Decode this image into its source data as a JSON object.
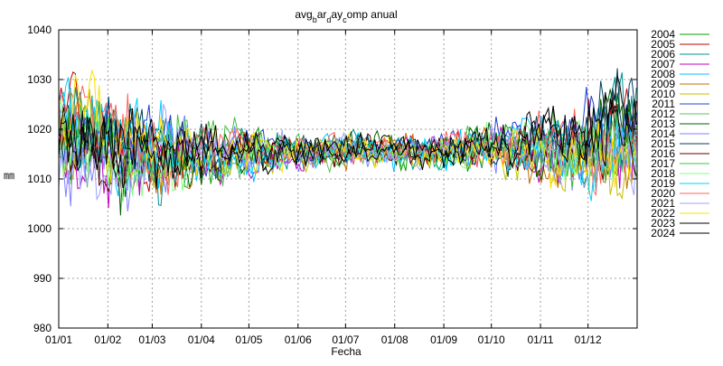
{
  "chart_data": {
    "type": "line",
    "title": "avgbardaycomp anual",
    "title_parts": [
      {
        "text": "avg",
        "sub": false
      },
      {
        "text": "b",
        "sub": true
      },
      {
        "text": "ar",
        "sub": false
      },
      {
        "text": "d",
        "sub": true
      },
      {
        "text": "ay",
        "sub": false
      },
      {
        "text": "c",
        "sub": true
      },
      {
        "text": "omp anual",
        "sub": false
      }
    ],
    "xlabel": "Fecha",
    "ylabel": "㎜",
    "ylim": [
      980,
      1040
    ],
    "yticks": [
      980,
      990,
      1000,
      1010,
      1020,
      1030,
      1040
    ],
    "xlim_day": [
      1,
      366
    ],
    "xticks": [
      {
        "label": "01/01",
        "day": 1
      },
      {
        "label": "01/02",
        "day": 32
      },
      {
        "label": "01/03",
        "day": 60
      },
      {
        "label": "01/04",
        "day": 91
      },
      {
        "label": "01/05",
        "day": 121
      },
      {
        "label": "01/06",
        "day": 152
      },
      {
        "label": "01/07",
        "day": 182
      },
      {
        "label": "01/08",
        "day": 213
      },
      {
        "label": "01/09",
        "day": 244
      },
      {
        "label": "01/10",
        "day": 274
      },
      {
        "label": "01/11",
        "day": 305
      },
      {
        "label": "01/12",
        "day": 335
      }
    ],
    "grid": true,
    "legend_position": "right",
    "series": [
      {
        "name": "2004",
        "color": "#00a000",
        "mean_by_month": [
          1019,
          1017,
          1015,
          1014,
          1015,
          1016,
          1015,
          1015,
          1016,
          1018,
          1017,
          1019
        ]
      },
      {
        "name": "2005",
        "color": "#c00000",
        "mean_by_month": [
          1022,
          1015,
          1013,
          1016,
          1014,
          1017,
          1016,
          1015,
          1017,
          1015,
          1016,
          1020
        ]
      },
      {
        "name": "2006",
        "color": "#009090",
        "mean_by_month": [
          1021,
          1018,
          1012,
          1015,
          1016,
          1015,
          1017,
          1014,
          1016,
          1017,
          1015,
          1022
        ]
      },
      {
        "name": "2007",
        "color": "#c000c0",
        "mean_by_month": [
          1016,
          1014,
          1016,
          1015,
          1014,
          1016,
          1016,
          1016,
          1017,
          1016,
          1014,
          1017
        ]
      },
      {
        "name": "2008",
        "color": "#00c0ff",
        "mean_by_month": [
          1020,
          1013,
          1015,
          1013,
          1015,
          1016,
          1015,
          1015,
          1015,
          1018,
          1017,
          1018
        ]
      },
      {
        "name": "2009",
        "color": "#c07000",
        "mean_by_month": [
          1018,
          1016,
          1014,
          1016,
          1016,
          1014,
          1016,
          1016,
          1016,
          1015,
          1012,
          1016
        ]
      },
      {
        "name": "2010",
        "color": "#c0c000",
        "mean_by_month": [
          1015,
          1012,
          1013,
          1015,
          1014,
          1015,
          1016,
          1015,
          1016,
          1014,
          1013,
          1014
        ]
      },
      {
        "name": "2011",
        "color": "#2040d0",
        "mean_by_month": [
          1022,
          1018,
          1016,
          1017,
          1016,
          1016,
          1015,
          1016,
          1017,
          1019,
          1018,
          1021
        ]
      },
      {
        "name": "2012",
        "color": "#60c060",
        "mean_by_month": [
          1018,
          1020,
          1015,
          1014,
          1016,
          1015,
          1016,
          1015,
          1016,
          1016,
          1017,
          1018
        ]
      },
      {
        "name": "2013",
        "color": "#006000",
        "mean_by_month": [
          1014,
          1013,
          1012,
          1015,
          1015,
          1016,
          1017,
          1015,
          1017,
          1017,
          1014,
          1021
        ]
      },
      {
        "name": "2014",
        "color": "#8080ff",
        "mean_by_month": [
          1013,
          1011,
          1016,
          1016,
          1015,
          1016,
          1015,
          1015,
          1016,
          1016,
          1015,
          1016
        ]
      },
      {
        "name": "2015",
        "color": "#004060",
        "mean_by_month": [
          1021,
          1017,
          1017,
          1016,
          1015,
          1016,
          1016,
          1016,
          1016,
          1017,
          1020,
          1022
        ]
      },
      {
        "name": "2016",
        "color": "#600000",
        "mean_by_month": [
          1015,
          1014,
          1015,
          1015,
          1016,
          1015,
          1016,
          1015,
          1016,
          1017,
          1016,
          1020
        ]
      },
      {
        "name": "2017",
        "color": "#40c040",
        "mean_by_month": [
          1020,
          1016,
          1018,
          1017,
          1015,
          1016,
          1016,
          1015,
          1017,
          1018,
          1016,
          1015
        ]
      },
      {
        "name": "2018",
        "color": "#80ff80",
        "mean_by_month": [
          1016,
          1012,
          1011,
          1015,
          1015,
          1016,
          1016,
          1015,
          1016,
          1018,
          1014,
          1019
        ]
      },
      {
        "name": "2019",
        "color": "#00d0ff",
        "mean_by_month": [
          1020,
          1019,
          1015,
          1014,
          1016,
          1015,
          1016,
          1015,
          1016,
          1015,
          1013,
          1015
        ]
      },
      {
        "name": "2020",
        "color": "#ff6060",
        "mean_by_month": [
          1021,
          1020,
          1014,
          1017,
          1016,
          1016,
          1016,
          1015,
          1017,
          1016,
          1018,
          1013
        ]
      },
      {
        "name": "2021",
        "color": "#a0a0ff",
        "mean_by_month": [
          1014,
          1013,
          1018,
          1016,
          1016,
          1016,
          1016,
          1015,
          1017,
          1018,
          1016,
          1016
        ]
      },
      {
        "name": "2022",
        "color": "#ffe000",
        "mean_by_month": [
          1022,
          1018,
          1016,
          1016,
          1015,
          1016,
          1016,
          1015,
          1016,
          1017,
          1013,
          1014
        ]
      },
      {
        "name": "2023",
        "color": "#000000",
        "mean_by_month": [
          1019,
          1016,
          1016,
          1015,
          1016,
          1016,
          1016,
          1016,
          1016,
          1018,
          1019,
          1022
        ]
      },
      {
        "name": "2024",
        "color": "#000000",
        "mean_by_month": [
          1016,
          1019,
          1015,
          1015,
          1016,
          1016,
          1016,
          1015,
          1017,
          1017,
          1018,
          1020
        ]
      }
    ]
  }
}
